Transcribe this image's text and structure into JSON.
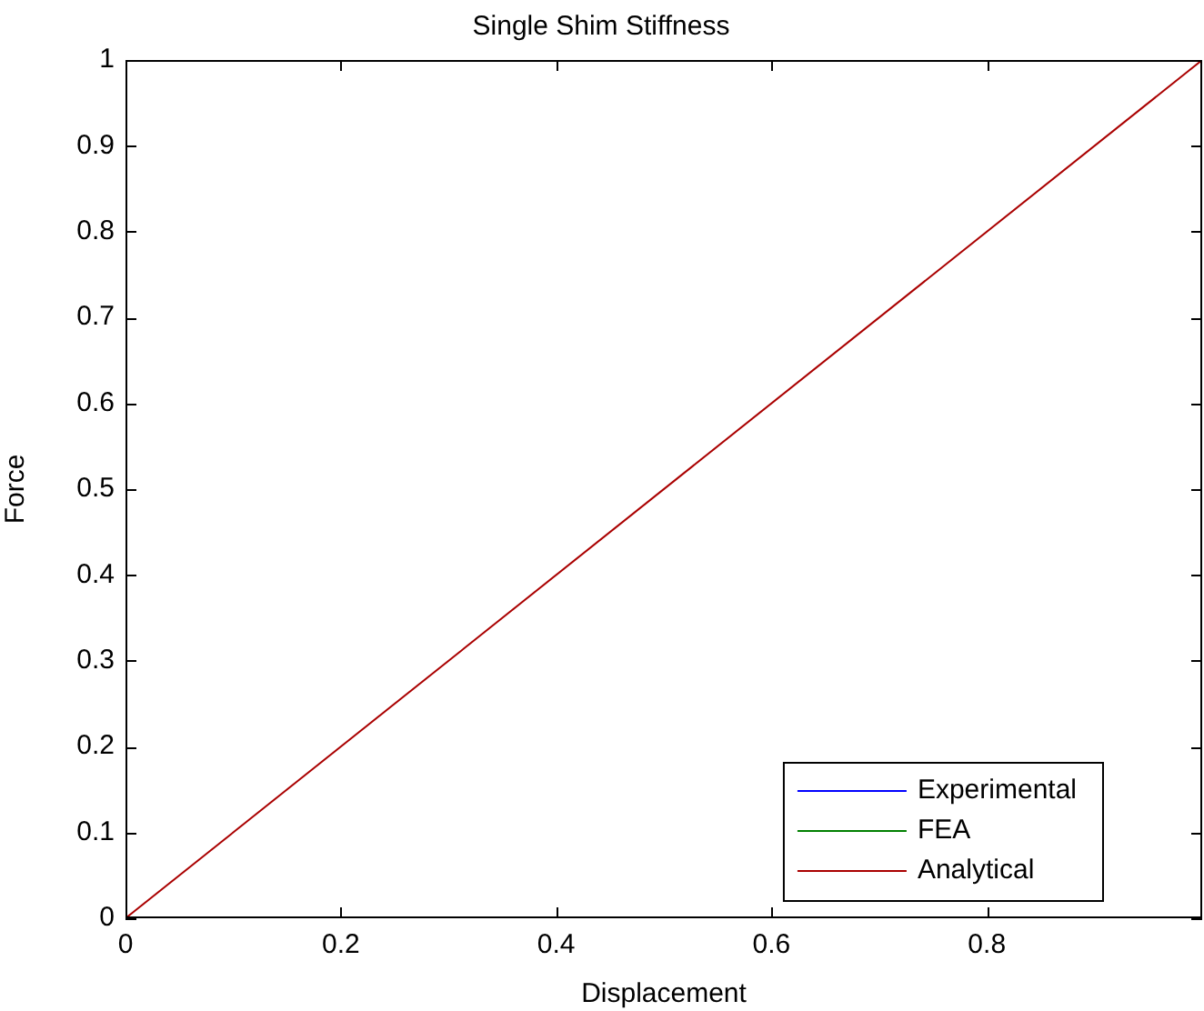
{
  "chart_data": {
    "type": "line",
    "title": "Single Shim Stiffness",
    "xlabel": "Displacement",
    "ylabel": "Force",
    "x": [
      0,
      1
    ],
    "series": [
      {
        "name": "Experimental",
        "color": "#0000ff",
        "values": [
          null,
          null
        ]
      },
      {
        "name": "FEA",
        "color": "#008000",
        "values": [
          null,
          null
        ]
      },
      {
        "name": "Analytical",
        "color": "#aa0000",
        "values": [
          0,
          1
        ]
      }
    ],
    "xlim": [
      0,
      1
    ],
    "xticks": [
      0,
      0.2,
      0.4,
      0.6,
      0.8
    ],
    "ylim": [
      0,
      1
    ],
    "yticks": [
      0,
      0.1,
      0.2,
      0.3,
      0.4,
      0.5,
      0.6,
      0.7,
      0.8,
      0.9,
      1
    ],
    "legend": "bottom right",
    "marker": "none",
    "line_style": "solid"
  }
}
